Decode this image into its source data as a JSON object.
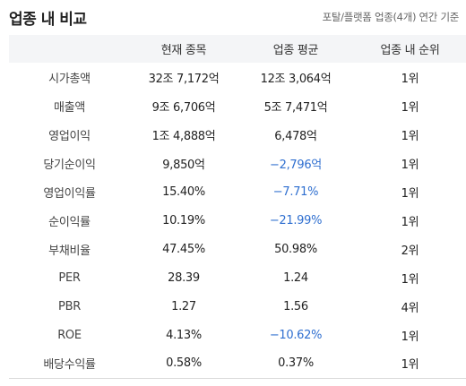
{
  "header": {
    "title": "업종 내 비교",
    "basis": "포탈/플랫폼 업종(4개) 연간 기준"
  },
  "columns": [
    "",
    "현재 종목",
    "업종 평균",
    "업종 내 순위"
  ],
  "rows": [
    {
      "label": "시가총액",
      "current": "32조 7,172억",
      "average": "12조 3,064억",
      "rank": "1위",
      "avg_negative": false
    },
    {
      "label": "매출액",
      "current": "9조 6,706억",
      "average": "5조 7,471억",
      "rank": "1위",
      "avg_negative": false
    },
    {
      "label": "영업이익",
      "current": "1조 4,888억",
      "average": "6,478억",
      "rank": "1위",
      "avg_negative": false
    },
    {
      "label": "당기순이익",
      "current": "9,850억",
      "average": "−2,796억",
      "rank": "1위",
      "avg_negative": true
    },
    {
      "label": "영업이익률",
      "current": "15.40%",
      "average": "−7.71%",
      "rank": "1위",
      "avg_negative": true
    },
    {
      "label": "순이익률",
      "current": "10.19%",
      "average": "−21.99%",
      "rank": "1위",
      "avg_negative": true
    },
    {
      "label": "부채비율",
      "current": "47.45%",
      "average": "50.98%",
      "rank": "2위",
      "avg_negative": false
    },
    {
      "label": "PER",
      "current": "28.39",
      "average": "1.24",
      "rank": "1위",
      "avg_negative": false
    },
    {
      "label": "PBR",
      "current": "1.27",
      "average": "1.56",
      "rank": "4위",
      "avg_negative": false
    },
    {
      "label": "ROE",
      "current": "4.13%",
      "average": "−10.62%",
      "rank": "1위",
      "avg_negative": true
    },
    {
      "label": "배당수익률",
      "current": "0.58%",
      "average": "0.37%",
      "rank": "1위",
      "avg_negative": false
    }
  ],
  "colors": {
    "negative": "#2f6fd0",
    "header_bg": "#f4f5f7"
  }
}
